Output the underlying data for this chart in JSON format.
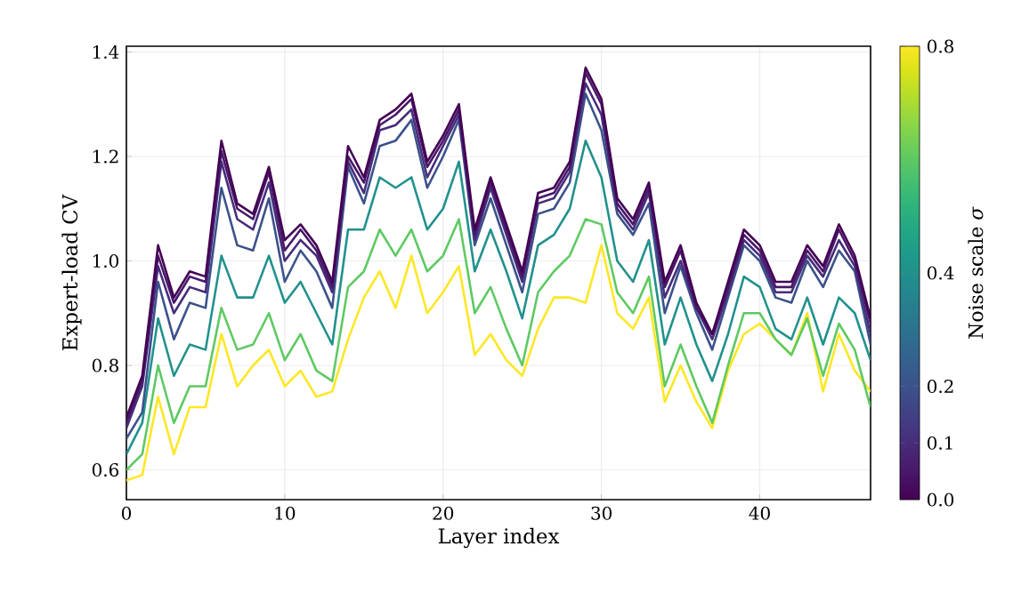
{
  "chart_data": {
    "type": "line",
    "xlabel": "Layer index",
    "ylabel": "Expert-load CV",
    "clabel": "Noise scale *σ*",
    "x": [
      0,
      1,
      2,
      3,
      4,
      5,
      6,
      7,
      8,
      9,
      10,
      11,
      12,
      13,
      14,
      15,
      16,
      17,
      18,
      19,
      20,
      21,
      22,
      23,
      24,
      25,
      26,
      27,
      28,
      29,
      30,
      31,
      32,
      33,
      34,
      35,
      36,
      37,
      38,
      39,
      40,
      41,
      42,
      43,
      44,
      45,
      46,
      47
    ],
    "xlim": [
      0,
      47
    ],
    "xticks": [
      0,
      10,
      20,
      30,
      40
    ],
    "ylim": [
      0.543,
      1.411
    ],
    "yticks": [
      {
        "value": 0.6,
        "label": "0.6"
      },
      {
        "value": 0.8,
        "label": "0.8"
      },
      {
        "value": 1.0,
        "label": "1.0"
      },
      {
        "value": 1.2,
        "label": "1.2"
      },
      {
        "value": 1.4,
        "label": "1.4"
      }
    ],
    "clim": [
      0,
      0.8
    ],
    "cticks": [
      {
        "value": 0.0,
        "label": "0.0"
      },
      {
        "value": 0.1,
        "label": "0.1"
      },
      {
        "value": 0.2,
        "label": "0.2"
      },
      {
        "value": 0.4,
        "label": "0.4"
      },
      {
        "value": 0.8,
        "label": "0.8"
      }
    ],
    "grid": true,
    "marker": "none",
    "line_style": "solid",
    "series": [
      {
        "color": "#fde725",
        "values": [
          0.58,
          0.59,
          0.74,
          0.63,
          0.72,
          0.72,
          0.86,
          0.76,
          0.8,
          0.83,
          0.76,
          0.79,
          0.74,
          0.75,
          0.85,
          0.93,
          0.98,
          0.91,
          1.01,
          0.9,
          0.94,
          0.99,
          0.82,
          0.86,
          0.81,
          0.78,
          0.87,
          0.93,
          0.93,
          0.92,
          1.03,
          0.9,
          0.87,
          0.93,
          0.73,
          0.8,
          0.73,
          0.68,
          0.79,
          0.86,
          0.88,
          0.85,
          0.82,
          0.9,
          0.75,
          0.86,
          0.79,
          0.75
        ]
      },
      {
        "color": "#5ec962",
        "values": [
          0.6,
          0.63,
          0.8,
          0.69,
          0.76,
          0.76,
          0.91,
          0.83,
          0.84,
          0.9,
          0.81,
          0.86,
          0.79,
          0.77,
          0.95,
          0.98,
          1.06,
          1.01,
          1.06,
          0.98,
          1.01,
          1.08,
          0.9,
          0.95,
          0.87,
          0.8,
          0.94,
          0.98,
          1.01,
          1.08,
          1.07,
          0.94,
          0.9,
          0.97,
          0.76,
          0.84,
          0.76,
          0.69,
          0.8,
          0.9,
          0.9,
          0.85,
          0.82,
          0.89,
          0.78,
          0.88,
          0.83,
          0.72
        ]
      },
      {
        "color": "#21918c",
        "values": [
          0.63,
          0.69,
          0.89,
          0.78,
          0.84,
          0.83,
          1.01,
          0.93,
          0.93,
          1.01,
          0.92,
          0.96,
          0.9,
          0.84,
          1.06,
          1.06,
          1.16,
          1.14,
          1.16,
          1.06,
          1.1,
          1.19,
          0.98,
          1.06,
          0.98,
          0.89,
          1.03,
          1.05,
          1.1,
          1.23,
          1.16,
          1.0,
          0.96,
          1.04,
          0.84,
          0.93,
          0.84,
          0.77,
          0.86,
          0.97,
          0.95,
          0.87,
          0.85,
          0.93,
          0.84,
          0.93,
          0.9,
          0.81
        ]
      },
      {
        "color": "#3b528b",
        "values": [
          0.66,
          0.71,
          0.96,
          0.85,
          0.92,
          0.91,
          1.14,
          1.03,
          1.02,
          1.12,
          0.96,
          1.02,
          0.98,
          0.91,
          1.18,
          1.11,
          1.22,
          1.23,
          1.27,
          1.14,
          1.2,
          1.27,
          1.03,
          1.12,
          1.03,
          0.94,
          1.09,
          1.1,
          1.15,
          1.32,
          1.25,
          1.09,
          1.05,
          1.11,
          0.9,
          0.99,
          0.9,
          0.83,
          0.93,
          1.03,
          1.0,
          0.93,
          0.92,
          1.0,
          0.95,
          1.02,
          0.98,
          0.84
        ]
      },
      {
        "color": "#472d7b",
        "values": [
          0.68,
          0.76,
          0.99,
          0.9,
          0.95,
          0.94,
          1.19,
          1.08,
          1.06,
          1.15,
          1.0,
          1.04,
          1.01,
          0.94,
          1.19,
          1.13,
          1.25,
          1.26,
          1.29,
          1.16,
          1.22,
          1.28,
          1.04,
          1.14,
          1.05,
          0.96,
          1.11,
          1.12,
          1.17,
          1.34,
          1.28,
          1.1,
          1.06,
          1.13,
          0.93,
          1.0,
          0.91,
          0.85,
          0.94,
          1.04,
          1.01,
          0.94,
          0.94,
          1.01,
          0.97,
          1.04,
          0.99,
          0.86
        ]
      },
      {
        "color": "#48186a",
        "values": [
          0.69,
          0.77,
          1.01,
          0.92,
          0.97,
          0.96,
          1.21,
          1.1,
          1.08,
          1.17,
          1.02,
          1.06,
          1.02,
          0.95,
          1.2,
          1.15,
          1.26,
          1.28,
          1.31,
          1.18,
          1.23,
          1.29,
          1.05,
          1.15,
          1.06,
          0.97,
          1.12,
          1.13,
          1.18,
          1.36,
          1.3,
          1.11,
          1.07,
          1.14,
          0.95,
          1.02,
          0.91,
          0.86,
          0.95,
          1.05,
          1.02,
          0.95,
          0.95,
          1.02,
          0.98,
          1.06,
          1.0,
          0.88
        ]
      },
      {
        "color": "#440154",
        "values": [
          0.7,
          0.78,
          1.03,
          0.93,
          0.98,
          0.97,
          1.23,
          1.11,
          1.09,
          1.18,
          1.04,
          1.07,
          1.03,
          0.96,
          1.22,
          1.16,
          1.27,
          1.29,
          1.32,
          1.19,
          1.24,
          1.3,
          1.06,
          1.16,
          1.07,
          0.98,
          1.13,
          1.14,
          1.19,
          1.37,
          1.31,
          1.12,
          1.08,
          1.15,
          0.96,
          1.03,
          0.92,
          0.86,
          0.96,
          1.06,
          1.03,
          0.96,
          0.96,
          1.03,
          0.99,
          1.07,
          1.01,
          0.89
        ]
      }
    ]
  }
}
